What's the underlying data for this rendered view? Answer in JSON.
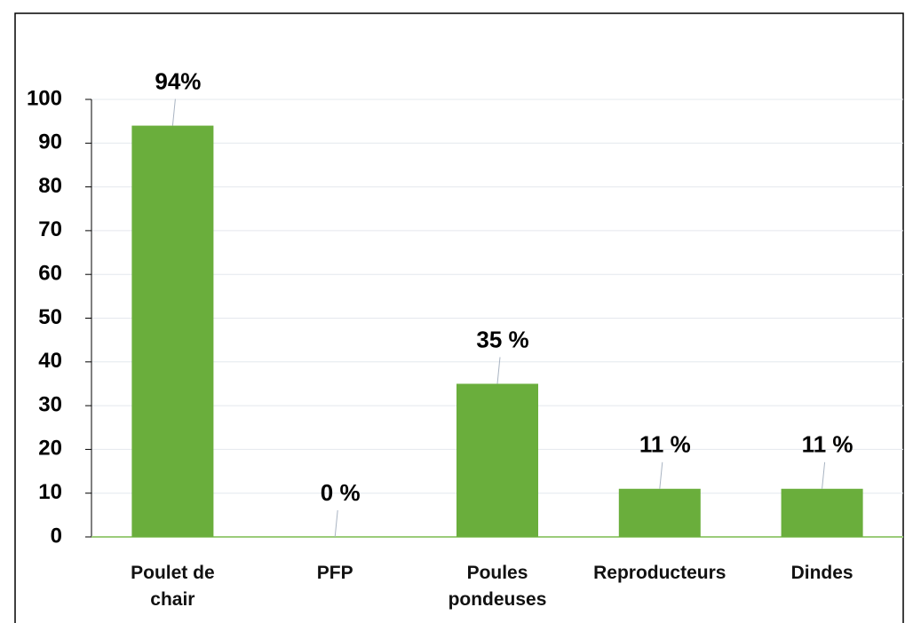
{
  "chart_data": {
    "type": "bar",
    "categories": [
      "Poulet de chair",
      "PFP",
      "Poules pondeuses",
      "Reproducteurs",
      "Dindes"
    ],
    "values": [
      94,
      0,
      35,
      11,
      11
    ],
    "value_labels": [
      "94%",
      "0 %",
      "35 %",
      "11 %",
      "11 %"
    ],
    "color": "#6aae3c",
    "ylim": [
      0,
      100
    ],
    "yticks": [
      0,
      10,
      20,
      30,
      40,
      50,
      60,
      70,
      80,
      90,
      100
    ],
    "grid": true
  }
}
